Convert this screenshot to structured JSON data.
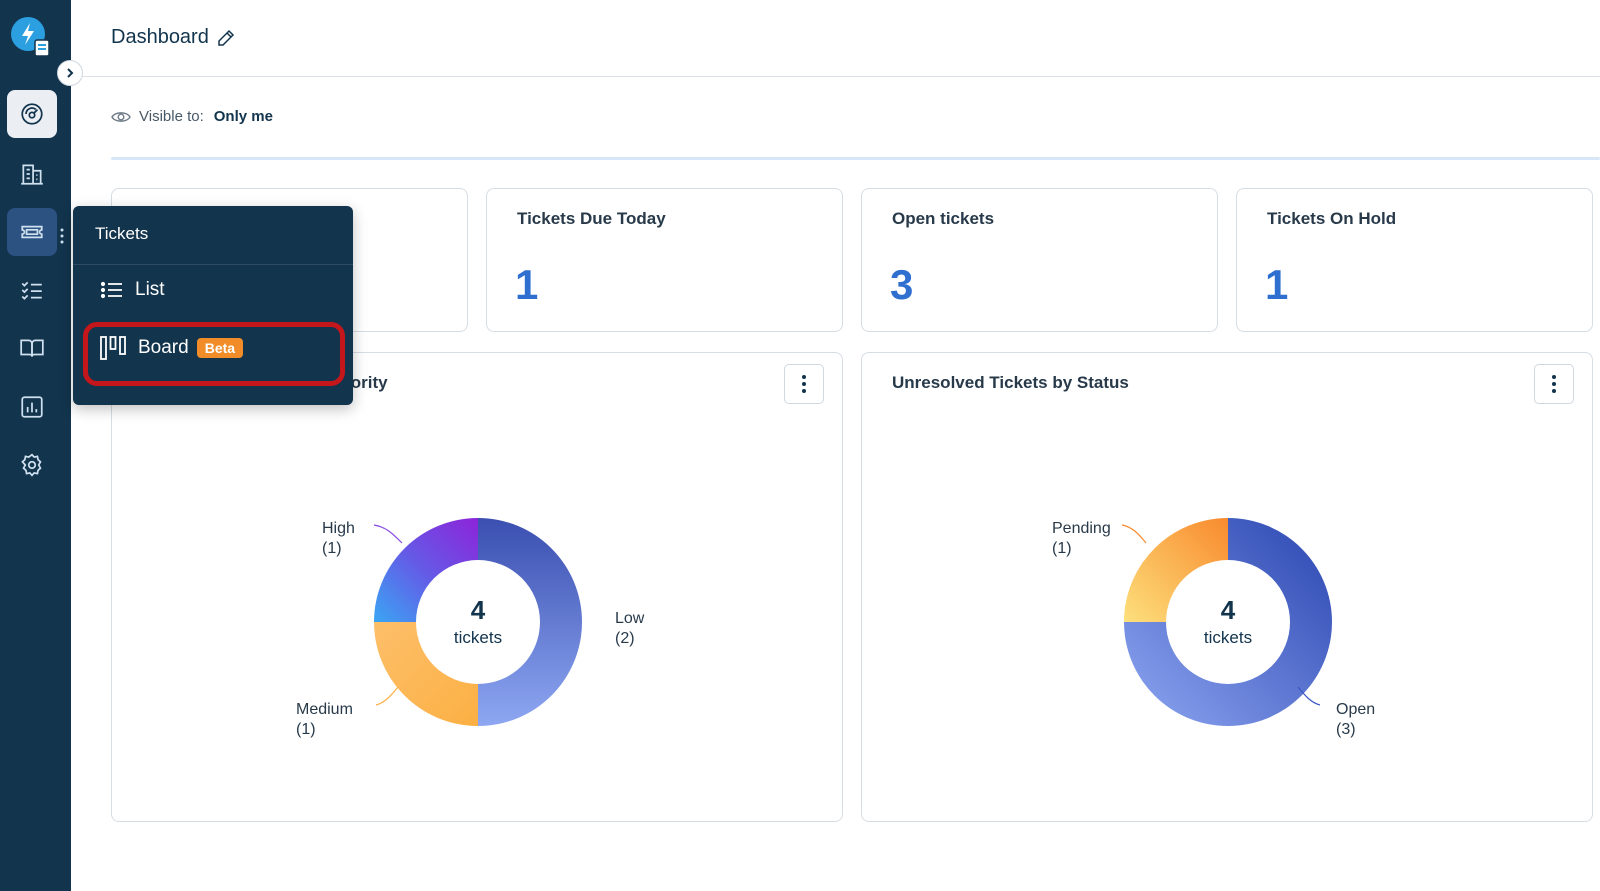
{
  "header": {
    "title": "Dashboard"
  },
  "visibility": {
    "label": "Visible to:",
    "value": "Only me"
  },
  "stats": [
    {
      "title": "Tickets Due Today",
      "value": "1"
    },
    {
      "title": "Open tickets",
      "value": "3"
    },
    {
      "title": "Tickets On Hold",
      "value": "1"
    }
  ],
  "priority_chart": {
    "title_partial": "iority",
    "center_value": "4",
    "center_label": "tickets",
    "labels": [
      {
        "name": "High",
        "count": "(1)"
      },
      {
        "name": "Low",
        "count": "(2)"
      },
      {
        "name": "Medium",
        "count": "(1)"
      }
    ]
  },
  "status_chart": {
    "title": "Unresolved Tickets by Status",
    "center_value": "4",
    "center_label": "tickets",
    "labels": [
      {
        "name": "Pending",
        "count": "(1)"
      },
      {
        "name": "Open",
        "count": "(3)"
      }
    ]
  },
  "chart_data": [
    {
      "type": "pie",
      "categories": [
        "Low",
        "Medium",
        "High"
      ],
      "values": [
        2,
        1,
        1
      ],
      "colors": [
        "#3e5bb8",
        "#fdb347",
        "#7b3fe0"
      ]
    },
    {
      "type": "pie",
      "categories": [
        "Open",
        "Pending"
      ],
      "values": [
        3,
        1
      ],
      "colors": [
        "#3a56c5",
        "#fca648"
      ]
    }
  ],
  "flyout": {
    "title": "Tickets",
    "items": [
      {
        "label": "List",
        "icon": "list-icon"
      },
      {
        "label": "Board",
        "icon": "board-icon",
        "badge": "Beta"
      }
    ]
  },
  "sidebar": {
    "items": [
      "dashboard-icon",
      "companies-icon",
      "tickets-icon",
      "tasks-icon",
      "knowledge-base-icon",
      "reports-icon",
      "settings-icon"
    ]
  }
}
